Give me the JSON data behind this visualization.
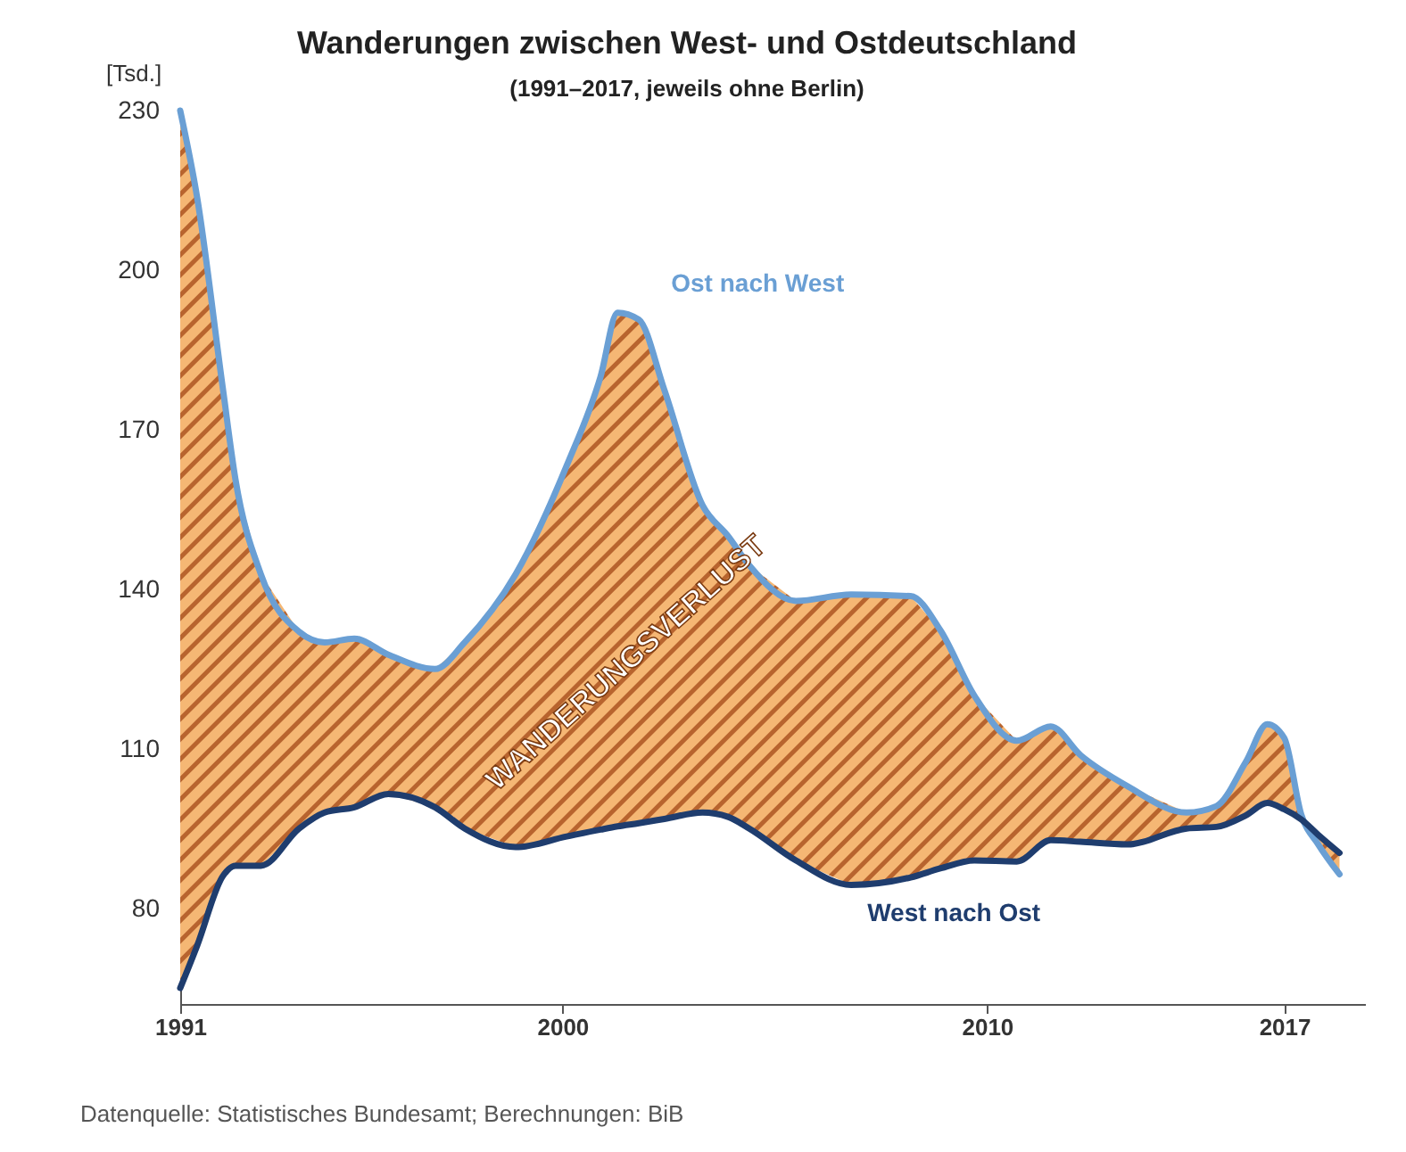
{
  "chart_data": {
    "type": "line",
    "title": "Wanderungen zwischen West- und Ostdeutschland",
    "subtitle": "(1991–2017, jeweils ohne Berlin)",
    "ylabel": "[Tsd.]",
    "x": [
      1991.0,
      1991.4,
      1992.0,
      1992.3,
      1992.9,
      1993.8,
      1994.4,
      1995.1,
      1995.9,
      1997.0,
      1997.7,
      1998.9,
      2000.1,
      2000.9,
      2001.3,
      2001.8,
      2002.4,
      2003.3,
      2003.9,
      2004.4,
      2005.5,
      2006.8,
      2008.2,
      2008.9,
      2009.7,
      2010.7,
      2011.5,
      2012.2,
      2013.3,
      2014.7,
      2015.4,
      2016.1,
      2016.6,
      2017.0,
      2017.4,
      2017.8,
      2018.3
    ],
    "series": [
      {
        "name": "Ost nach West",
        "color": "#6a9fd4",
        "values": [
          230,
          213.6,
          178,
          160.7,
          142.8,
          132,
          130,
          130.7,
          127.7,
          125,
          130,
          142.8,
          163.2,
          180,
          192,
          190.7,
          177.5,
          155.8,
          150,
          144.5,
          137.8,
          139,
          138.7,
          132.3,
          120,
          111.5,
          114.2,
          108.8,
          103,
          98,
          99.2,
          107.6,
          114.6,
          112,
          97.6,
          92,
          86.4
        ],
        "lower": [
          65,
          73,
          86,
          88,
          88,
          95,
          98,
          99,
          101.5,
          99,
          95,
          91.5,
          93.5,
          94.8,
          95.4,
          96,
          96.8,
          98,
          97.2,
          95,
          89,
          84.4,
          85.8,
          87.5,
          89,
          88.8,
          92.8,
          92.5,
          92,
          95,
          95.3,
          97.5,
          99.8,
          98.6,
          96.7,
          93.8,
          90.4
        ],
        "upper": [
          230,
          213.6,
          178,
          160.7,
          142.8,
          132,
          130,
          130.7,
          127.7,
          125,
          130,
          142.8,
          163.2,
          180,
          192,
          190.7,
          177.5,
          155.8,
          150,
          144.5,
          137.8,
          139,
          138.7,
          132.3,
          120,
          111.5,
          114.2,
          108.8,
          103,
          98,
          99.2,
          107.6,
          114.6,
          112,
          97.6,
          92,
          86.4
        ]
      },
      {
        "name": "West nach Ost",
        "color": "#1f3d6e",
        "values": [
          65,
          73,
          86,
          88,
          88,
          95,
          98,
          99,
          101.5,
          99,
          95,
          91.5,
          93.5,
          94.8,
          95.4,
          96,
          96.8,
          98,
          97.2,
          95,
          89,
          84.4,
          85.8,
          87.5,
          89,
          88.8,
          92.8,
          92.5,
          92,
          95,
          95.3,
          97.5,
          99.8,
          98.6,
          96.7,
          93.8,
          90.4
        ]
      }
    ],
    "xlim": [
      1991,
      2018.9
    ],
    "xticks": [
      1991,
      2000,
      2010,
      2017
    ],
    "ylim": [
      62,
      230
    ],
    "yticks": [
      80,
      110,
      140,
      170,
      200,
      230
    ],
    "grid": false,
    "annotations": [
      "WANDERUNGSVERLUST",
      "Datenquelle: Statistisches Bundesamt; Berechnungen: BiB"
    ]
  }
}
